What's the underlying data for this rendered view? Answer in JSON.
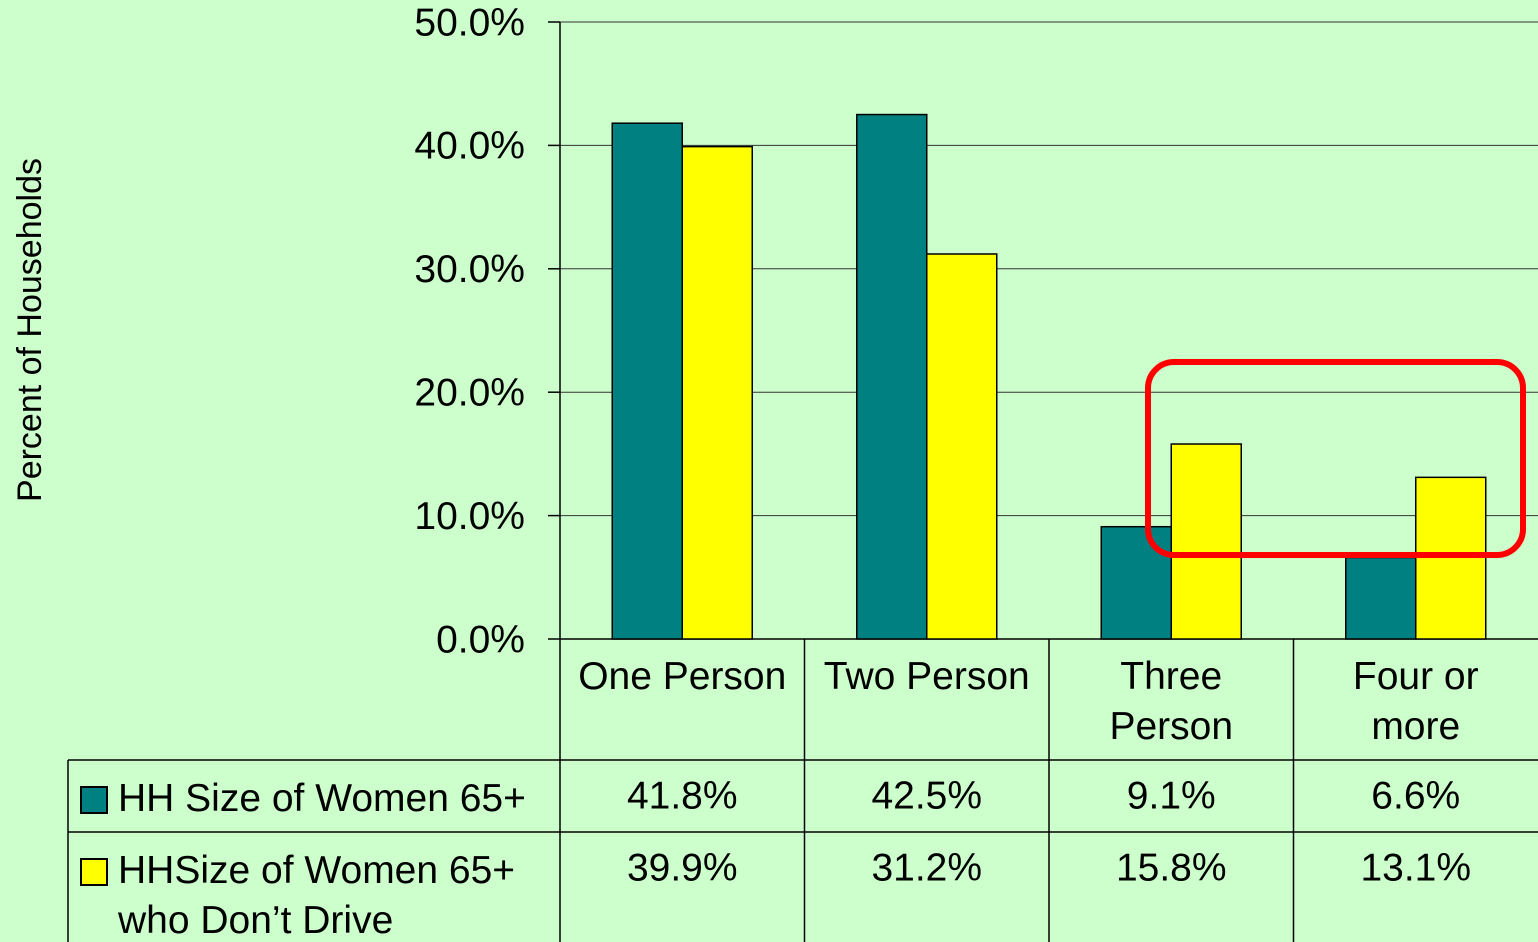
{
  "chart_data": {
    "type": "bar",
    "y_axis_label": "Percent of Households",
    "categories": [
      "One Person",
      "Two Person",
      "Three Person",
      "Four or more"
    ],
    "series": [
      {
        "name": "HH Size of Women 65+",
        "color": "#008080",
        "values": [
          41.8,
          42.5,
          9.1,
          6.6
        ],
        "value_labels": [
          "41.8%",
          "42.5%",
          "9.1%",
          "6.6%"
        ]
      },
      {
        "name": "HHSize of Women 65+ who Don’t Drive",
        "color": "#ffff00",
        "values": [
          39.9,
          31.2,
          15.8,
          13.1
        ],
        "value_labels": [
          "39.9%",
          "31.2%",
          "15.8%",
          "13.1%"
        ]
      }
    ],
    "ylim": [
      0,
      50
    ],
    "yticks": [
      {
        "value": 0,
        "label": "0.0%"
      },
      {
        "value": 10,
        "label": "10.0%"
      },
      {
        "value": 20,
        "label": "20.0%"
      },
      {
        "value": 30,
        "label": "30.0%"
      },
      {
        "value": 40,
        "label": "40.0%"
      },
      {
        "value": 50,
        "label": "50.0%"
      }
    ],
    "grid": true
  }
}
